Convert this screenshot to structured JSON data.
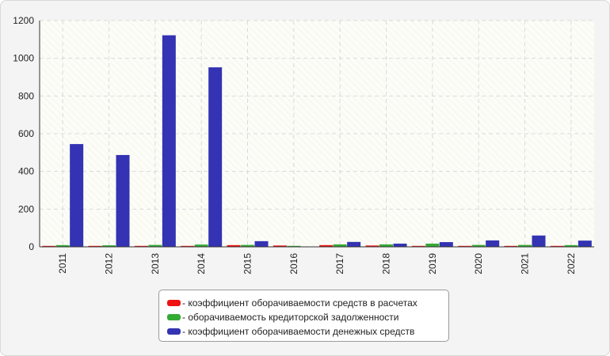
{
  "chart_data": {
    "type": "bar",
    "title": "",
    "xlabel": "",
    "ylabel": "",
    "categories": [
      "2011",
      "2012",
      "2013",
      "2014",
      "2015",
      "2016",
      "2017",
      "2018",
      "2019",
      "2020",
      "2021",
      "2022"
    ],
    "ylim": [
      0,
      1200
    ],
    "yticks": [
      "0",
      "200",
      "400",
      "600",
      "800",
      "1000",
      "1200"
    ],
    "grid": true,
    "legend_position": "bottom",
    "series": [
      {
        "name": "- коэффициент оборачиваемости средств в расчетах",
        "color": "#ee1111",
        "values": [
          4,
          4,
          4,
          4,
          9,
          7,
          9,
          7,
          5,
          5,
          4,
          5
        ]
      },
      {
        "name": "- оборачиваемость кредиторской задолженности",
        "color": "#33aa33",
        "values": [
          9,
          8,
          10,
          12,
          10,
          4,
          13,
          13,
          17,
          10,
          10,
          9
        ]
      },
      {
        "name": "- коэффициент оборачиваемости денежных средств",
        "color": "#3333b3",
        "values": [
          545,
          487,
          1122,
          952,
          30,
          0,
          26,
          17,
          25,
          34,
          60,
          33
        ]
      }
    ]
  }
}
